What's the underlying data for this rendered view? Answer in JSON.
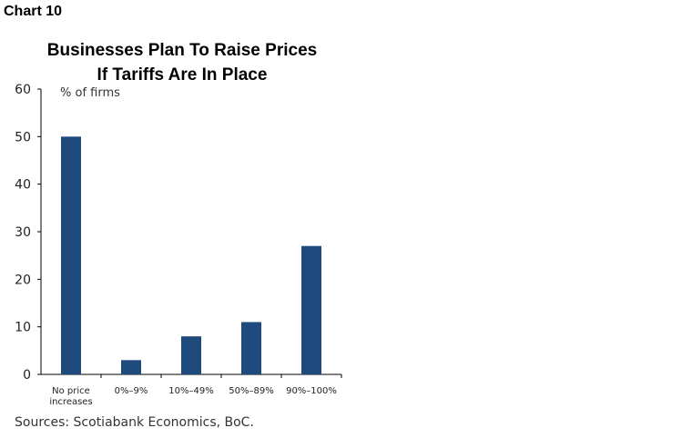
{
  "chart_label": "Chart 10",
  "sources": "Sources: Scotiabank Economics, BoC.",
  "colors": {
    "bar": "#1f4a7d",
    "axis": "#000000"
  },
  "chart_data": {
    "type": "bar",
    "title": [
      "Businesses Plan To Raise Prices",
      "If Tariffs Are In Place"
    ],
    "ylabel": "% of firms",
    "xlabel": "",
    "ylim": [
      0,
      60
    ],
    "yticks": [
      0,
      10,
      20,
      30,
      40,
      50,
      60
    ],
    "categories": [
      [
        "No price",
        "increases"
      ],
      [
        "0%–9%"
      ],
      [
        "10%–49%"
      ],
      [
        "50%–89%"
      ],
      [
        "90%–100%"
      ]
    ],
    "values": [
      50,
      3,
      8,
      11,
      27
    ],
    "grid": false,
    "legend": "none"
  }
}
